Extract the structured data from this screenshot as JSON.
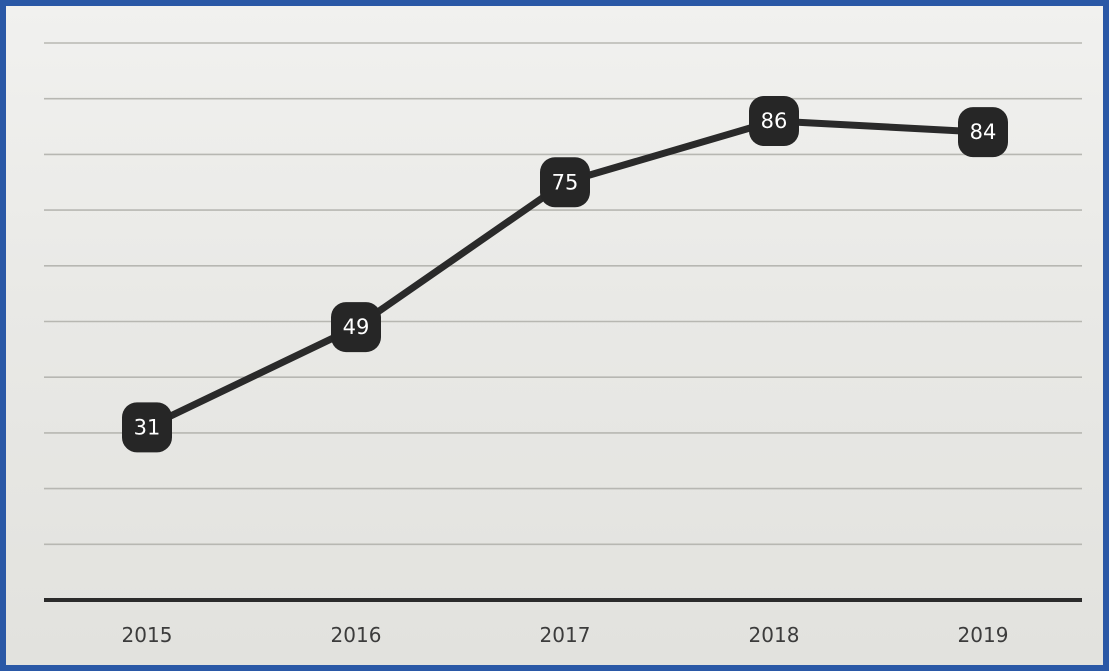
{
  "chart_data": {
    "type": "line",
    "categories": [
      "2015",
      "2016",
      "2017",
      "2018",
      "2019"
    ],
    "series": [
      {
        "values": [
          31,
          49,
          75,
          86,
          84
        ]
      }
    ],
    "data_labels": [
      "31",
      "49",
      "75",
      "86",
      "84"
    ],
    "title": "",
    "xlabel": "",
    "ylabel": "",
    "ylim": [
      0,
      100
    ],
    "grid": true,
    "legend": "none",
    "colors": {
      "line": "#2a2a2a",
      "marker": "#262626",
      "label_text": "#ffffff",
      "frame": "#2a58a6"
    }
  }
}
